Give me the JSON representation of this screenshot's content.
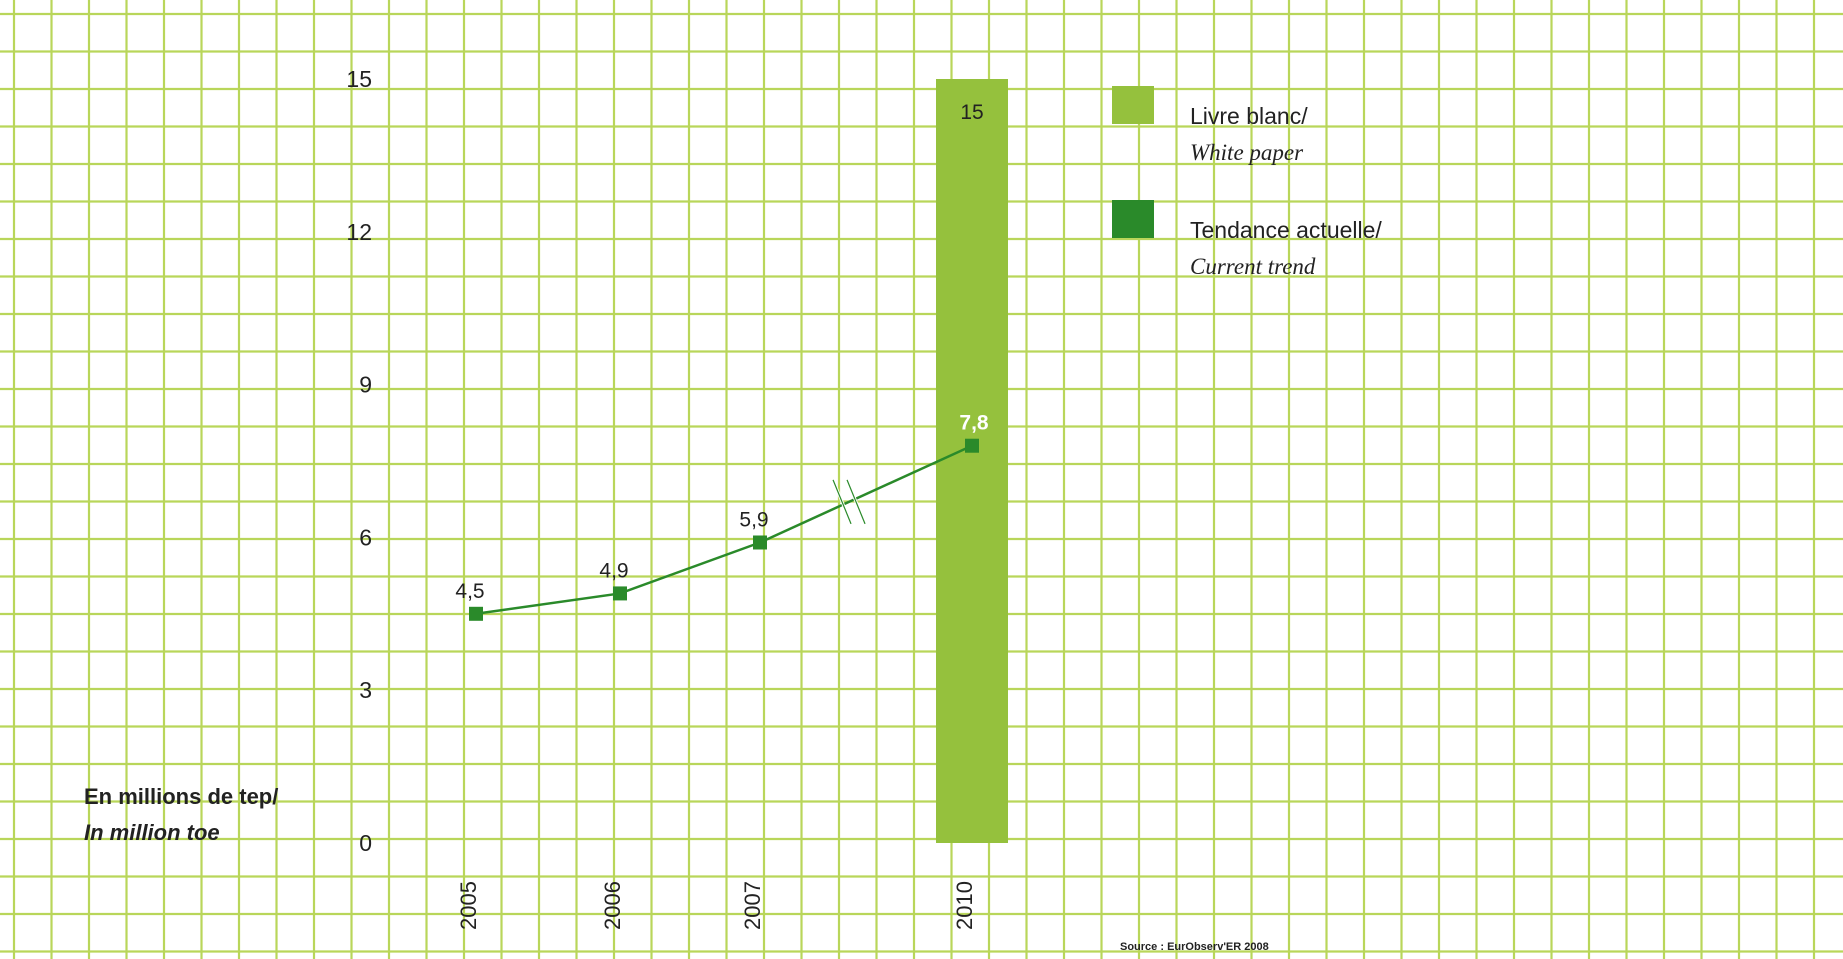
{
  "chart_data": {
    "type": "bar+line",
    "unit_label_line1": "En millions de tep/",
    "unit_label_line2": "In million toe",
    "y_ticks": [
      "0",
      "3",
      "6",
      "9",
      "12",
      "15"
    ],
    "ylim": [
      0,
      15
    ],
    "grid": true,
    "categories": [
      "2005",
      "2006",
      "2007",
      "2010"
    ],
    "bar_series": {
      "name_line1": "Livre blanc/",
      "name_line2": "White paper",
      "color": "#95c13d",
      "category": "2010",
      "value": 15,
      "label": "15"
    },
    "line_series": {
      "name_line1": "Tendance actuelle/",
      "name_line2": "Current trend",
      "color": "#2a8a2a",
      "points": [
        {
          "x": "2005",
          "value": 4.5,
          "label": "4,5"
        },
        {
          "x": "2006",
          "value": 4.9,
          "label": "4,9"
        },
        {
          "x": "2007",
          "value": 5.9,
          "label": "5,9"
        },
        {
          "x": "2010",
          "value": 7.8,
          "label": "7,8"
        }
      ]
    },
    "axis_break_between": [
      "2007",
      "2010"
    ],
    "legend_position": "top-right",
    "source": "Source : EurObserv'ER 2008"
  },
  "colors": {
    "grid": "#b9d65a",
    "bar": "#95c13d",
    "line": "#2a8a2a",
    "marker": "#2a8a2a"
  }
}
